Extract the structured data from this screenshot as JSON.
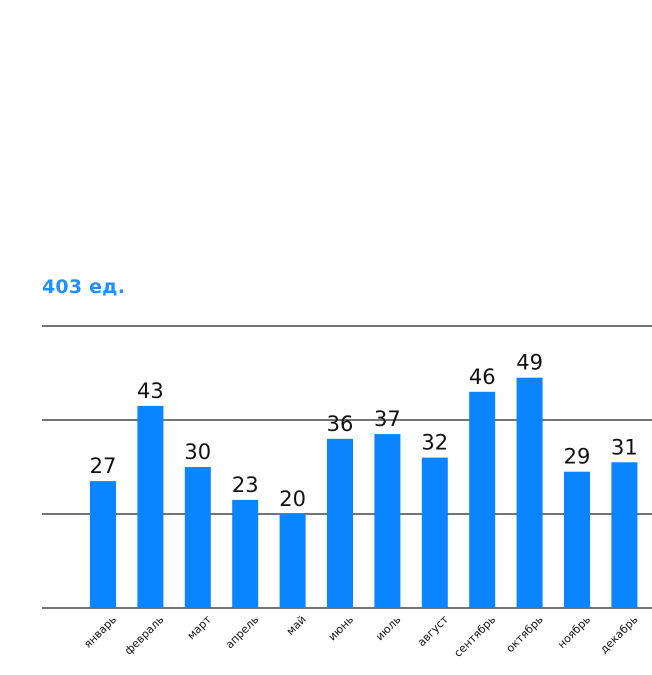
{
  "summary": {
    "total_label": "403 ед."
  },
  "colors": {
    "bar": "#0a84ff",
    "grid": "#222222",
    "label": "#111111",
    "summary": "#1e90ff"
  },
  "chart_data": {
    "type": "bar",
    "title": "",
    "xlabel": "",
    "ylabel": "",
    "categories": [
      "январь",
      "февраль",
      "март",
      "апрель",
      "май",
      "июнь",
      "июль",
      "август",
      "сентябрь",
      "октябрь",
      "ноябрь",
      "декабрь"
    ],
    "values": [
      27,
      43,
      30,
      23,
      20,
      36,
      37,
      32,
      46,
      49,
      29,
      31
    ],
    "value_labels": [
      "27",
      "43",
      "30",
      "23",
      "20",
      "36",
      "37",
      "32",
      "46",
      "49",
      "29",
      "31"
    ],
    "ylim": [
      0,
      60
    ],
    "gridlines": [
      0,
      20,
      40,
      60
    ],
    "show_y_tick_labels": false,
    "grid": true,
    "legend": "none"
  }
}
